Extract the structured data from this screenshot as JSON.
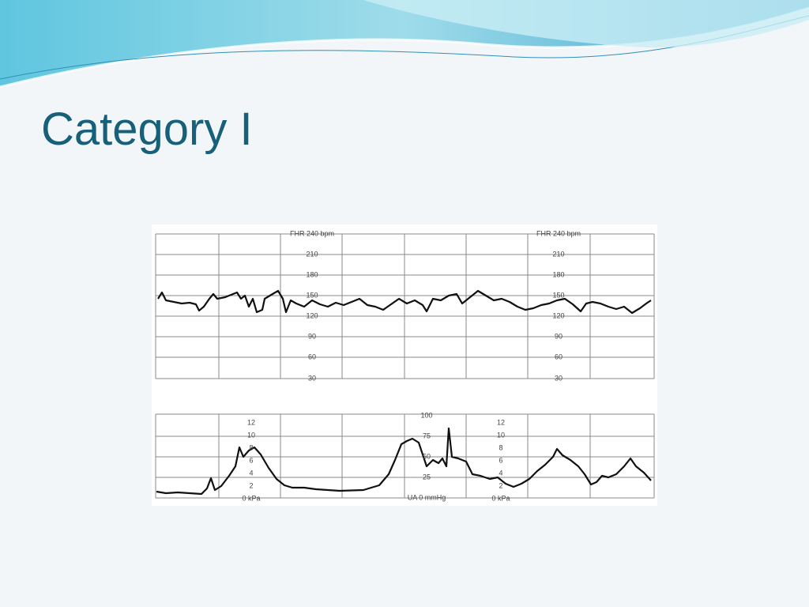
{
  "slide": {
    "title": "Category I"
  },
  "strip": {
    "fhr_scales": [
      {
        "labels": [
          "FHR 240 bpm",
          "210",
          "180",
          "150",
          "120",
          "90",
          "60",
          "30"
        ]
      },
      {
        "labels": [
          "FHR 240 bpm",
          "210",
          "180",
          "150",
          "120",
          "90",
          "60",
          "30"
        ]
      }
    ],
    "ua_scales": [
      {
        "labels": [
          "12",
          "10",
          "8",
          "6",
          "4",
          "2",
          "0 kPa"
        ]
      },
      {
        "labels": [
          "100",
          "75",
          "50",
          "25",
          "UA 0 mmHg"
        ]
      },
      {
        "labels": [
          "12",
          "10",
          "8",
          "6",
          "4",
          "2",
          "0 kPa"
        ]
      }
    ]
  }
}
